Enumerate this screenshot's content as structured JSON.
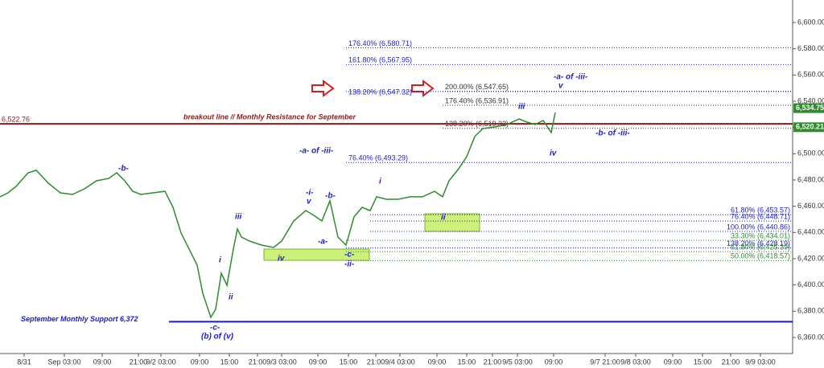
{
  "chart_data": {
    "type": "line",
    "x": [
      0,
      2,
      4,
      7,
      9,
      12,
      15,
      18,
      21,
      24,
      27,
      29,
      31,
      33,
      35,
      38,
      41,
      43,
      45,
      47,
      49,
      50.4,
      52.4,
      53.6,
      55,
      56.4,
      58,
      59,
      60,
      62,
      65,
      68,
      70,
      73,
      76,
      78,
      80,
      82,
      84,
      86,
      88,
      90,
      92,
      93.6,
      96,
      99,
      102,
      105,
      108,
      110,
      111.6,
      114,
      116,
      118,
      120,
      123,
      126,
      129,
      131,
      133,
      135,
      137,
      138
    ],
    "series": [
      {
        "color": "#2e8b2e",
        "values": [
          6467.2,
          6470.2,
          6475.1,
          6485.5,
          6487.4,
          6477.6,
          6470.2,
          6469.0,
          6473.3,
          6479.4,
          6481.2,
          6485.5,
          6479.4,
          6471.4,
          6469.0,
          6470.2,
          6471.4,
          6459.2,
          6439.6,
          6427.4,
          6415.1,
          6393.7,
          6375.3,
          6381.5,
          6409.0,
          6399.8,
          6427.4,
          6442.7,
          6436.5,
          6433.5,
          6430.4,
          6428.6,
          6433.5,
          6448.8,
          6456.7,
          6453.1,
          6448.8,
          6464.1,
          6436.5,
          6430.4,
          6451.9,
          6459.2,
          6456.7,
          6467.2,
          6465.3,
          6465.3,
          6467.2,
          6467.2,
          6471.4,
          6467.2,
          6479.4,
          6488.6,
          6497.8,
          6513.1,
          6519.2,
          6520.4,
          6522.3,
          6526.5,
          6524.1,
          6522.3,
          6525.3,
          6516.1,
          6531.4
        ]
      }
    ],
    "xlim": [
      0,
      197
    ],
    "xticks": [
      {
        "value": 6,
        "label": "8/31"
      },
      {
        "value": 16,
        "label": "Sep 03:00"
      },
      {
        "value": 25.4,
        "label": "09:00"
      },
      {
        "value": 34.4,
        "label": "21:00"
      },
      {
        "value": 40,
        "label": "9/2 03:00"
      },
      {
        "value": 49.6,
        "label": "09:00"
      },
      {
        "value": 57,
        "label": "15:00"
      },
      {
        "value": 64,
        "label": "21:00"
      },
      {
        "value": 70,
        "label": "9/3 03:00"
      },
      {
        "value": 79,
        "label": "09:00"
      },
      {
        "value": 86.6,
        "label": "15:00"
      },
      {
        "value": 93.4,
        "label": "21:00"
      },
      {
        "value": 99.4,
        "label": "9/4 03:00"
      },
      {
        "value": 108.6,
        "label": "09:00"
      },
      {
        "value": 116,
        "label": "15:00"
      },
      {
        "value": 122.4,
        "label": "21:00"
      },
      {
        "value": 128.6,
        "label": "9/5 03:00"
      },
      {
        "value": 137.6,
        "label": "09:00"
      },
      {
        "value": 150.4,
        "label": "9/7 21:00"
      },
      {
        "value": 158,
        "label": "9/8 03:00"
      },
      {
        "value": 167.2,
        "label": "09:00"
      },
      {
        "value": 174.6,
        "label": "15:00"
      },
      {
        "value": 181.6,
        "label": "21:00"
      },
      {
        "value": 189,
        "label": "9/9 03:00"
      }
    ],
    "ylim": [
      6347.78,
      6617.14
    ],
    "yticks": [
      {
        "value": 6360,
        "label": "6,360.00"
      },
      {
        "value": 6380,
        "label": "6,380.00"
      },
      {
        "value": 6400,
        "label": "6,400.00"
      },
      {
        "value": 6420,
        "label": "6,420.00"
      },
      {
        "value": 6440,
        "label": "6,440.00"
      },
      {
        "value": 6460,
        "label": "6,460.00"
      },
      {
        "value": 6480,
        "label": "6,480.00"
      },
      {
        "value": 6500,
        "label": "6,500.00"
      },
      {
        "value": 6520,
        "label": "6,520.00"
      },
      {
        "value": 6540,
        "label": "6,540.00"
      },
      {
        "value": 6560,
        "label": "6,560.00"
      },
      {
        "value": 6580,
        "label": "6,580.00"
      },
      {
        "value": 6600,
        "label": "6,600.00"
      }
    ],
    "levels": [
      {
        "value": 6580.71,
        "label": "176.40% (6,580.71)",
        "color": "#1a1ad0"
      },
      {
        "value": 6567.95,
        "label": "161.80% (6,567.95)",
        "color": "#1a1ad0"
      },
      {
        "value": 6547.32,
        "label": "138.20% (6,547.32)",
        "color": "#1a1ad0"
      },
      {
        "value": 6547.65,
        "label": "200.00% (6,547.65)",
        "color": "#333333"
      },
      {
        "value": 6536.91,
        "label": "176.40% (6,536.91)",
        "color": "#333333"
      },
      {
        "value": 6519.32,
        "label": "138.20% (6,519.32)",
        "color": "#333333"
      },
      {
        "value": 6493.29,
        "label": "76.40% (6,493.29)",
        "color": "#1a1ad0"
      },
      {
        "value": 6453.57,
        "label": "61.80% (6,453.57)",
        "color": "#1a1ad0"
      },
      {
        "value": 6448.71,
        "label": "76.40% (6,448.71)",
        "color": "#1a1ad0"
      },
      {
        "value": 6440.86,
        "label": "100.00% (6,440.86)",
        "color": "#1a1ad0"
      },
      {
        "value": 6434.01,
        "label": "33.30% (6,434.01)",
        "color": "#2e8b2e"
      },
      {
        "value": 6428.19,
        "label": "138.20% (6,428.19)",
        "color": "#1a1ad0"
      },
      {
        "value": 6425.39,
        "label": "61.80% (6,425.39)",
        "color": "#2e8b2e"
      },
      {
        "value": 6418.57,
        "label": "50.00% (6,418.57)",
        "color": "#2e8b2e"
      }
    ],
    "breakout": {
      "value": 6522.76,
      "label": "6,522.76",
      "text": "breakout line // Monthly Resistance for September",
      "color": "#8b1a1a"
    },
    "support": {
      "value": 6372,
      "text": "September Monthly Support 6,372",
      "color": "#1a1ad0"
    },
    "last_prices": [
      {
        "value": 6534.75,
        "label": "6,534.75"
      },
      {
        "value": 6520.21,
        "label": "6,520.21"
      }
    ],
    "annotations": [
      "-b-",
      "-a- of -iii-",
      "-i-",
      "v",
      "-b-",
      "i",
      "iii",
      "i",
      "ii",
      "-a-",
      "iv",
      "-c-",
      "-ii-",
      "ii",
      "-c-",
      "(b) of (v)",
      "iii",
      "iv",
      "-a- of -iii-",
      "v",
      "-b- of -iii-"
    ]
  }
}
